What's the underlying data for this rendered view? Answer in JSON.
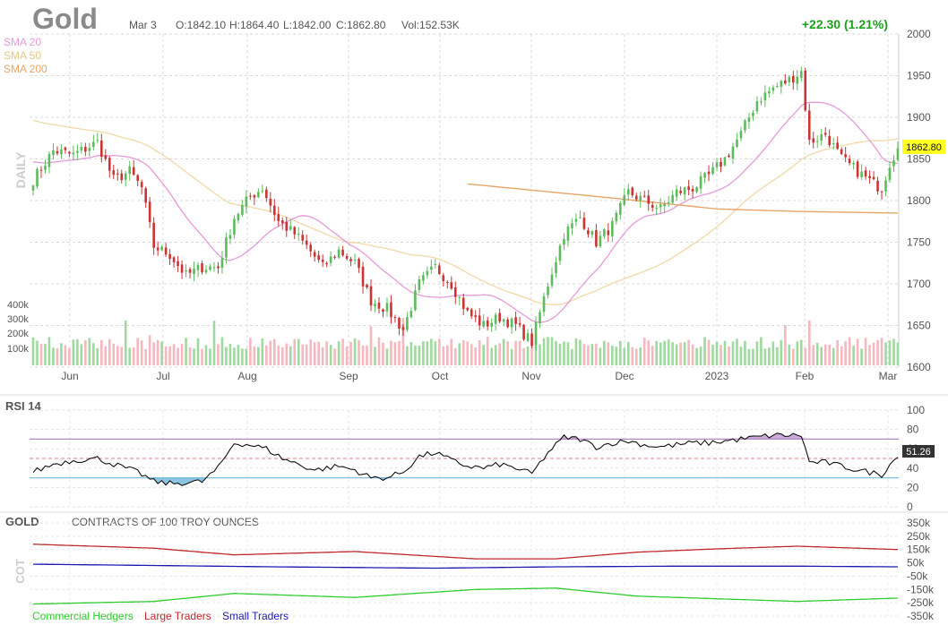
{
  "header": {
    "symbol": "Gold",
    "date": "Mar 3",
    "open": "O:1842.10",
    "high": "H:1864.40",
    "low": "L:1842.00",
    "close": "C:1862.80",
    "volume": "Vol:152.53K",
    "change": "+22.30 (1.21%)"
  },
  "colors": {
    "up": "#5dbb5d",
    "down": "#cc3333",
    "vol_up": "#9ed99e",
    "vol_down": "#f4b8bf",
    "sma20": "#e79ad8",
    "sma50": "#f0d9a6",
    "sma200": "#e6a66a",
    "rsi_line": "#111111",
    "rsi_over": "#b487c9",
    "rsi_under": "#7fbfe0",
    "commercial": "#2ecc2e",
    "large": "#c0282b",
    "small": "#1a1ab0"
  },
  "chart_data": [
    {
      "type": "candlestick",
      "title": "Gold",
      "ylabel": "DAILY",
      "y_ticks": [
        1600,
        1650,
        1700,
        1750,
        1800,
        1850,
        1900,
        1950,
        2000
      ],
      "ylim": [
        1600,
        2000
      ],
      "volume_ticks": [
        "100k",
        "200k",
        "300k",
        "400k"
      ],
      "x_labels": [
        "Jun",
        "Jul",
        "Aug",
        "Sep",
        "Oct",
        "Nov",
        "Dec",
        "2023",
        "Feb",
        "Mar"
      ],
      "last_price": "1862.80",
      "legend": [
        "SMA 20",
        "SMA 50",
        "SMA 200"
      ],
      "close_anchors": [
        [
          0,
          1825
        ],
        [
          5,
          1860
        ],
        [
          10,
          1855
        ],
        [
          16,
          1870
        ],
        [
          20,
          1825
        ],
        [
          24,
          1835
        ],
        [
          27,
          1815
        ],
        [
          30,
          1745
        ],
        [
          34,
          1735
        ],
        [
          38,
          1710
        ],
        [
          42,
          1720
        ],
        [
          46,
          1720
        ],
        [
          50,
          1780
        ],
        [
          54,
          1805
        ],
        [
          57,
          1815
        ],
        [
          61,
          1775
        ],
        [
          65,
          1760
        ],
        [
          68,
          1745
        ],
        [
          72,
          1720
        ],
        [
          76,
          1740
        ],
        [
          80,
          1725
        ],
        [
          84,
          1680
        ],
        [
          88,
          1670
        ],
        [
          92,
          1645
        ],
        [
          96,
          1700
        ],
        [
          100,
          1720
        ],
        [
          104,
          1700
        ],
        [
          108,
          1665
        ],
        [
          112,
          1650
        ],
        [
          116,
          1660
        ],
        [
          120,
          1650
        ],
        [
          124,
          1630
        ],
        [
          128,
          1700
        ],
        [
          132,
          1760
        ],
        [
          136,
          1780
        ],
        [
          140,
          1750
        ],
        [
          144,
          1770
        ],
        [
          148,
          1810
        ],
        [
          152,
          1800
        ],
        [
          156,
          1790
        ],
        [
          160,
          1810
        ],
        [
          164,
          1815
        ],
        [
          168,
          1830
        ],
        [
          172,
          1850
        ],
        [
          176,
          1880
        ],
        [
          180,
          1920
        ],
        [
          184,
          1935
        ],
        [
          188,
          1945
        ],
        [
          191,
          1955
        ],
        [
          193,
          1870
        ],
        [
          197,
          1880
        ],
        [
          201,
          1850
        ],
        [
          205,
          1835
        ],
        [
          209,
          1820
        ],
        [
          211,
          1815
        ],
        [
          213,
          1845
        ],
        [
          215,
          1862.8
        ]
      ],
      "sma_200_anchors": [
        [
          108,
          1820
        ],
        [
          140,
          1805
        ],
        [
          170,
          1790
        ],
        [
          190,
          1787
        ],
        [
          215,
          1785
        ]
      ]
    },
    {
      "type": "line",
      "title": "RSI 14",
      "y_ticks": [
        0,
        20,
        40,
        60,
        80,
        100
      ],
      "ylim": [
        0,
        100
      ],
      "overbought": 70,
      "oversold": 30,
      "last_value": "51.26",
      "anchors": [
        [
          0,
          36
        ],
        [
          5,
          44
        ],
        [
          10,
          48
        ],
        [
          16,
          50
        ],
        [
          20,
          44
        ],
        [
          26,
          36
        ],
        [
          30,
          26
        ],
        [
          34,
          24
        ],
        [
          38,
          25
        ],
        [
          42,
          26
        ],
        [
          46,
          40
        ],
        [
          50,
          66
        ],
        [
          54,
          64
        ],
        [
          58,
          60
        ],
        [
          62,
          50
        ],
        [
          66,
          44
        ],
        [
          70,
          38
        ],
        [
          76,
          42
        ],
        [
          80,
          38
        ],
        [
          84,
          30
        ],
        [
          88,
          30
        ],
        [
          92,
          36
        ],
        [
          96,
          52
        ],
        [
          100,
          56
        ],
        [
          104,
          48
        ],
        [
          108,
          42
        ],
        [
          112,
          40
        ],
        [
          116,
          44
        ],
        [
          120,
          40
        ],
        [
          124,
          34
        ],
        [
          128,
          56
        ],
        [
          132,
          72
        ],
        [
          136,
          70
        ],
        [
          140,
          62
        ],
        [
          144,
          66
        ],
        [
          148,
          68
        ],
        [
          152,
          64
        ],
        [
          156,
          62
        ],
        [
          160,
          64
        ],
        [
          164,
          66
        ],
        [
          168,
          66
        ],
        [
          172,
          68
        ],
        [
          176,
          70
        ],
        [
          180,
          72
        ],
        [
          184,
          74
        ],
        [
          188,
          74
        ],
        [
          191,
          74
        ],
        [
          193,
          46
        ],
        [
          197,
          46
        ],
        [
          201,
          42
        ],
        [
          205,
          38
        ],
        [
          209,
          35
        ],
        [
          211,
          33
        ],
        [
          213,
          44
        ],
        [
          215,
          51.26
        ]
      ]
    },
    {
      "type": "line",
      "title": "GOLD",
      "subtitle": "CONTRACTS OF 100 TROY OUNCES",
      "ylabel": "COT",
      "y_ticks": [
        "350k",
        "250k",
        "150k",
        "50k",
        "-50k",
        "-150k",
        "-250k",
        "-350k"
      ],
      "ylim": [
        -350,
        350
      ],
      "series": [
        {
          "name": "Commercial Hedgers",
          "anchors": [
            [
              0,
              -260
            ],
            [
              30,
              -240
            ],
            [
              50,
              -180
            ],
            [
              80,
              -210
            ],
            [
              110,
              -150
            ],
            [
              130,
              -140
            ],
            [
              150,
              -200
            ],
            [
              170,
              -220
            ],
            [
              190,
              -240
            ],
            [
              215,
              -215
            ]
          ]
        },
        {
          "name": "Large Traders",
          "anchors": [
            [
              0,
              190
            ],
            [
              30,
              160
            ],
            [
              50,
              110
            ],
            [
              80,
              135
            ],
            [
              110,
              80
            ],
            [
              130,
              80
            ],
            [
              150,
              130
            ],
            [
              170,
              155
            ],
            [
              190,
              175
            ],
            [
              215,
              150
            ]
          ]
        },
        {
          "name": "Small Traders",
          "anchors": [
            [
              0,
              40
            ],
            [
              30,
              30
            ],
            [
              60,
              20
            ],
            [
              100,
              10
            ],
            [
              130,
              20
            ],
            [
              160,
              25
            ],
            [
              190,
              25
            ],
            [
              215,
              20
            ]
          ]
        }
      ]
    }
  ]
}
